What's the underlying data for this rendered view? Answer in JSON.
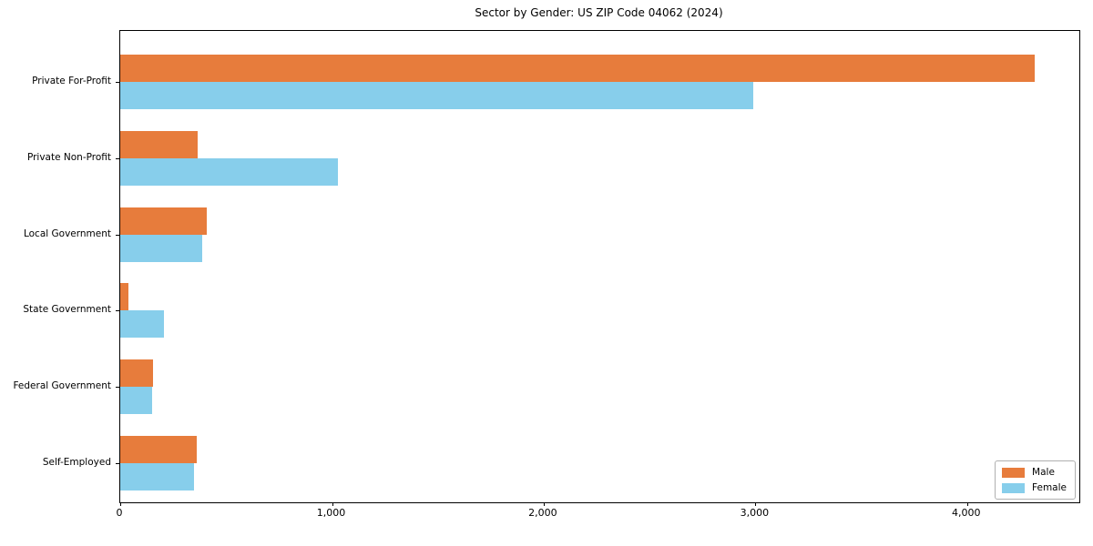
{
  "title": "Sector by Gender: US ZIP Code 04062 (2024)",
  "chart_data": {
    "type": "bar",
    "orientation": "horizontal",
    "title": "Sector by Gender: US ZIP Code 04062 (2024)",
    "categories": [
      "Private For-Profit",
      "Private Non-Profit",
      "Local Government",
      "State Government",
      "Federal Government",
      "Self-Employed"
    ],
    "series": [
      {
        "name": "Male",
        "color": "#E77C3C",
        "values": [
          4320,
          365,
          410,
          40,
          155,
          360
        ]
      },
      {
        "name": "Female",
        "color": "#87CEEB",
        "values": [
          2990,
          1030,
          385,
          205,
          150,
          350
        ]
      }
    ],
    "xlabel": "",
    "ylabel": "",
    "xlim": [
      0,
      4530
    ],
    "xticks": [
      0,
      1000,
      2000,
      3000,
      4000
    ],
    "xtick_labels": [
      "0",
      "1,000",
      "2,000",
      "3,000",
      "4,000"
    ],
    "grid": false,
    "legend_position": "lower-right",
    "colors": {
      "background": "#ffffff",
      "frame": "#000000",
      "text": "#000000",
      "legend_border": "#b0b0b0"
    }
  }
}
